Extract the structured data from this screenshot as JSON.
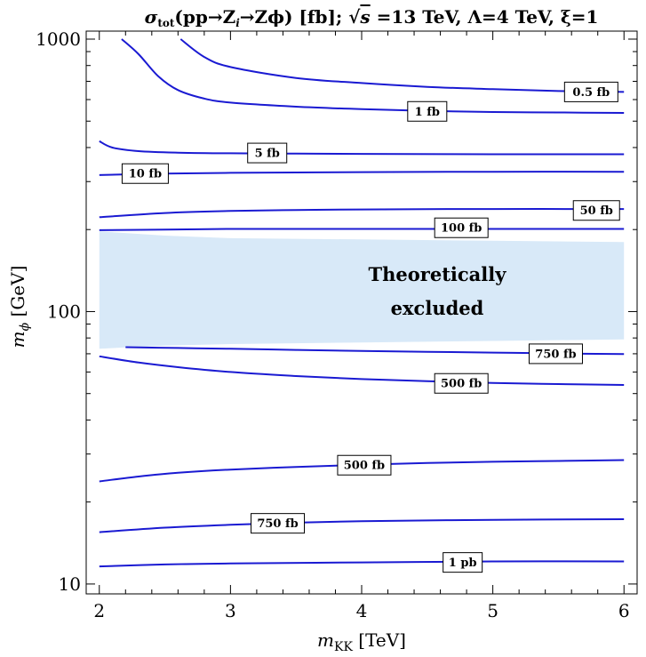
{
  "chart_data": {
    "type": "contour",
    "title": "σ_tot(pp→Z_i→Zϕ) [fb]; √s =13 TeV, Λ=4 TeV, ξ=1",
    "title_parts": {
      "sigma": "σ",
      "sub": "tot",
      "process": "(pp→Z",
      "process_sub": "i",
      "process_end": "→Zϕ) [fb]; ",
      "sqrt": "√",
      "s": "s",
      "rest": " =13 TeV, Λ=4 TeV, ξ=1"
    },
    "xlabel": "m_KK [TeV]",
    "xlabel_parts": {
      "m": "m",
      "sub": "KK",
      "unit": " [TeV]"
    },
    "ylabel": "m_ϕ [GeV]",
    "ylabel_parts": {
      "m": "m",
      "sub": "ϕ",
      "unit": " [GeV]"
    },
    "xlim": [
      1.9,
      6.1
    ],
    "ylim": [
      9.2,
      1070
    ],
    "yscale": "log",
    "x_ticks": [
      2,
      3,
      4,
      5,
      6
    ],
    "x_tick_labels": [
      "2",
      "3",
      "4",
      "5",
      "6"
    ],
    "x_minor_ticks": [
      2.2,
      2.4,
      2.6,
      2.8,
      3.2,
      3.4,
      3.6,
      3.8,
      4.2,
      4.4,
      4.6,
      4.8,
      5.2,
      5.4,
      5.6,
      5.8
    ],
    "y_ticks": [
      10,
      100,
      1000
    ],
    "y_tick_labels": [
      "10",
      "100",
      "1000"
    ],
    "y_minor_ticks": [
      20,
      30,
      40,
      50,
      60,
      70,
      80,
      90,
      200,
      300,
      400,
      500,
      600,
      700,
      800,
      900
    ],
    "line_color": "#1a1ad2",
    "excluded_color": "#d8e9f8",
    "excluded_region": {
      "text_line1": "Theoretically",
      "text_line2": "excluded",
      "x": [
        2.0,
        6.0
      ],
      "y_upper": [
        [
          2.0,
          197
        ],
        [
          2.5,
          190
        ],
        [
          3.0,
          186
        ],
        [
          4.0,
          184
        ],
        [
          5.0,
          182
        ],
        [
          6.0,
          180
        ]
      ],
      "y_lower": [
        [
          2.0,
          73
        ],
        [
          2.5,
          75
        ],
        [
          3.0,
          76
        ],
        [
          4.0,
          77
        ],
        [
          5.0,
          78
        ],
        [
          6.0,
          79
        ]
      ]
    },
    "series": [
      {
        "name": "0.5 fb",
        "label": "0.5 fb",
        "label_at": [
          5.75,
          640
        ],
        "points": [
          [
            2.62,
            1000
          ],
          [
            2.8,
            860
          ],
          [
            3.0,
            790
          ],
          [
            3.5,
            720
          ],
          [
            4.0,
            690
          ],
          [
            4.5,
            668
          ],
          [
            5.0,
            655
          ],
          [
            5.5,
            645
          ],
          [
            6.0,
            640
          ]
        ]
      },
      {
        "name": "1 fb",
        "label": "1 fb",
        "label_at": [
          4.5,
          543
        ],
        "points": [
          [
            2.17,
            1000
          ],
          [
            2.3,
            880
          ],
          [
            2.45,
            730
          ],
          [
            2.6,
            650
          ],
          [
            2.8,
            605
          ],
          [
            3.0,
            585
          ],
          [
            3.5,
            565
          ],
          [
            4.0,
            553
          ],
          [
            4.5,
            545
          ],
          [
            5.0,
            540
          ],
          [
            5.5,
            538
          ],
          [
            6.0,
            536
          ]
        ]
      },
      {
        "name": "5 fb",
        "label": "5 fb",
        "label_at": [
          3.28,
          382
        ],
        "points": [
          [
            2.0,
            422
          ],
          [
            2.1,
            400
          ],
          [
            2.3,
            388
          ],
          [
            2.6,
            383
          ],
          [
            3.0,
            381
          ],
          [
            3.5,
            380
          ],
          [
            4.0,
            379
          ],
          [
            5.0,
            378
          ],
          [
            6.0,
            378
          ]
        ]
      },
      {
        "name": "10 fb",
        "label": "10 fb",
        "label_at": [
          2.35,
          321
        ],
        "points": [
          [
            2.0,
            317
          ],
          [
            2.5,
            321
          ],
          [
            3.0,
            323
          ],
          [
            3.5,
            324
          ],
          [
            4.0,
            325
          ],
          [
            5.0,
            326
          ],
          [
            6.0,
            326
          ]
        ]
      },
      {
        "name": "50 fb",
        "label": "50 fb",
        "label_at": [
          5.79,
          235
        ],
        "points": [
          [
            2.0,
            222
          ],
          [
            2.5,
            230
          ],
          [
            3.0,
            234
          ],
          [
            3.5,
            236
          ],
          [
            4.0,
            237
          ],
          [
            5.0,
            238
          ],
          [
            6.0,
            238
          ]
        ]
      },
      {
        "name": "100 fb",
        "label": "100 fb",
        "label_at": [
          4.76,
          203
        ],
        "points": [
          [
            2.0,
            199
          ],
          [
            2.5,
            200
          ],
          [
            3.0,
            201
          ],
          [
            3.5,
            201
          ],
          [
            4.0,
            201
          ],
          [
            5.0,
            201
          ],
          [
            6.0,
            201
          ]
        ]
      },
      {
        "name": "750 fb",
        "label": "750 fb",
        "label_at": [
          5.48,
          70
        ],
        "points": [
          [
            2.2,
            74
          ],
          [
            2.6,
            73.5
          ],
          [
            3.0,
            73
          ],
          [
            3.5,
            72.3
          ],
          [
            4.0,
            71.7
          ],
          [
            4.5,
            71.2
          ],
          [
            5.0,
            70.7
          ],
          [
            5.5,
            70.2
          ],
          [
            6.0,
            69.8
          ]
        ]
      },
      {
        "name": "500 fb",
        "label": "500 fb",
        "label_at": [
          4.76,
          54.5
        ],
        "points": [
          [
            2.0,
            68.5
          ],
          [
            2.3,
            65
          ],
          [
            2.6,
            62.5
          ],
          [
            3.0,
            60
          ],
          [
            3.5,
            58
          ],
          [
            4.0,
            56.5
          ],
          [
            4.5,
            55.5
          ],
          [
            5.0,
            54.7
          ],
          [
            5.5,
            54.2
          ],
          [
            6.0,
            53.8
          ]
        ]
      },
      {
        "name": "500 fb",
        "label": "500 fb",
        "label_at": [
          4.02,
          27.3
        ],
        "points": [
          [
            2.0,
            23.8
          ],
          [
            2.3,
            24.8
          ],
          [
            2.6,
            25.6
          ],
          [
            3.0,
            26.3
          ],
          [
            3.5,
            26.9
          ],
          [
            4.0,
            27.4
          ],
          [
            4.5,
            27.8
          ],
          [
            5.0,
            28.1
          ],
          [
            5.5,
            28.3
          ],
          [
            6.0,
            28.5
          ]
        ]
      },
      {
        "name": "750 fb",
        "label": "750 fb",
        "label_at": [
          3.36,
          16.7
        ],
        "points": [
          [
            2.0,
            15.5
          ],
          [
            2.5,
            16.1
          ],
          [
            3.0,
            16.5
          ],
          [
            3.5,
            16.8
          ],
          [
            4.0,
            17.0
          ],
          [
            5.0,
            17.2
          ],
          [
            6.0,
            17.3
          ]
        ]
      },
      {
        "name": "1 pb",
        "label": "1 pb",
        "label_at": [
          4.77,
          12.0
        ],
        "points": [
          [
            2.0,
            11.6
          ],
          [
            2.5,
            11.8
          ],
          [
            3.0,
            11.9
          ],
          [
            4.0,
            12.0
          ],
          [
            5.0,
            12.1
          ],
          [
            6.0,
            12.1
          ]
        ]
      }
    ]
  }
}
